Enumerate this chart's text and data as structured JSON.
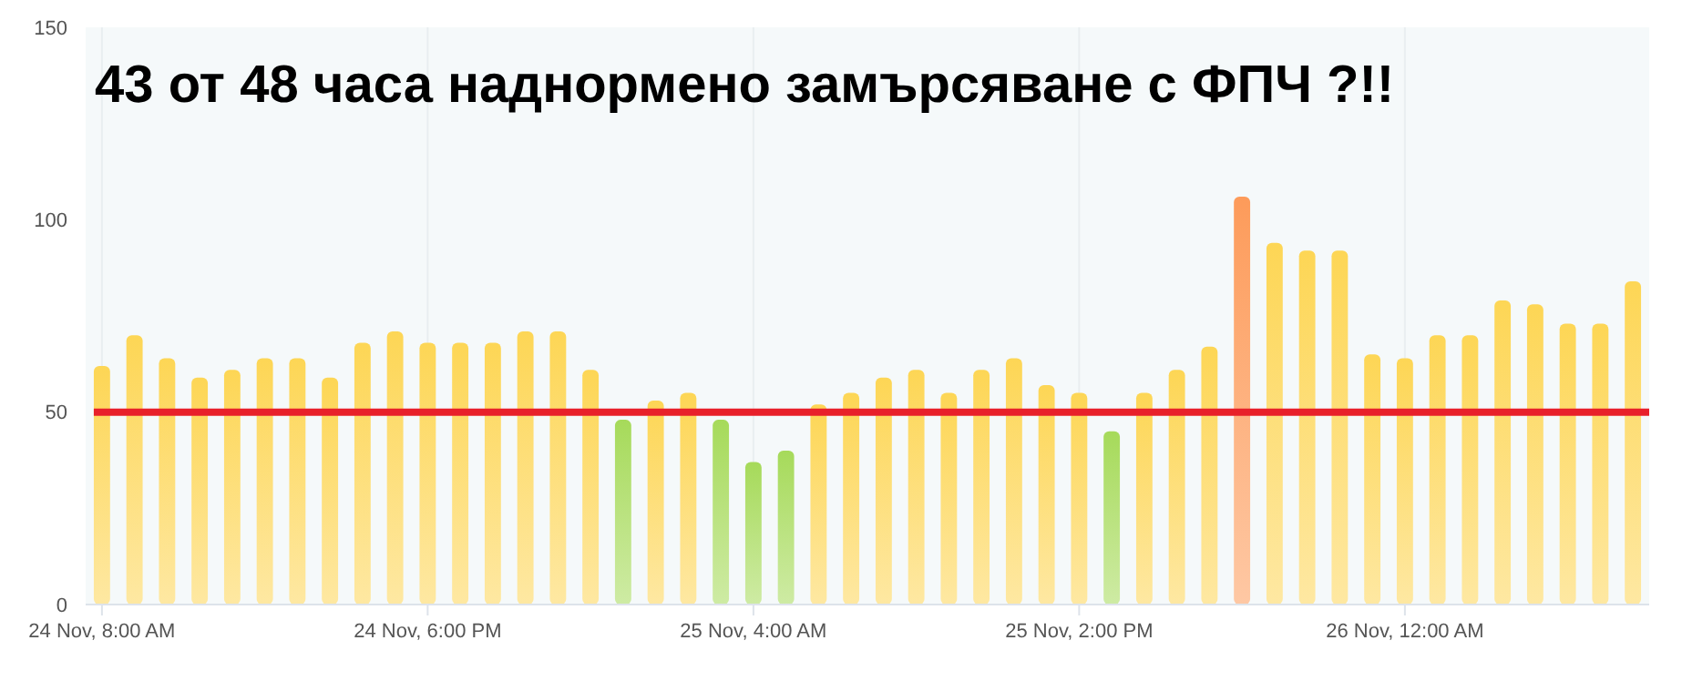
{
  "chart_data": {
    "type": "bar",
    "title": "43 от 48 часа наднормено замърсяване с ФПЧ ?!!",
    "categories": [
      "24 Nov, 8:00 AM",
      null,
      null,
      null,
      null,
      null,
      null,
      null,
      null,
      null,
      "24 Nov, 6:00 PM",
      null,
      null,
      null,
      null,
      null,
      null,
      null,
      null,
      null,
      "25 Nov, 4:00 AM",
      null,
      null,
      null,
      null,
      null,
      null,
      null,
      null,
      null,
      "25 Nov, 2:00 PM",
      null,
      null,
      null,
      null,
      null,
      null,
      null,
      null,
      null,
      "26 Nov, 12:00 AM",
      null,
      null,
      null,
      null,
      null,
      null,
      null
    ],
    "values": [
      62,
      70,
      64,
      59,
      61,
      64,
      64,
      59,
      68,
      71,
      68,
      68,
      68,
      71,
      71,
      61,
      48,
      53,
      55,
      48,
      37,
      40,
      52,
      55,
      59,
      61,
      55,
      61,
      64,
      57,
      55,
      45,
      55,
      61,
      67,
      106,
      94,
      92,
      92,
      65,
      64,
      70,
      70,
      79,
      78,
      73,
      73,
      84
    ],
    "colors": [
      "#fdd655",
      "#fdd655",
      "#fdd655",
      "#fdd655",
      "#fdd655",
      "#fdd655",
      "#fdd655",
      "#fdd655",
      "#fdd655",
      "#fdd655",
      "#fdd655",
      "#fdd655",
      "#fdd655",
      "#fdd655",
      "#fdd655",
      "#fdd655",
      "#a6da5a",
      "#fdd655",
      "#fdd655",
      "#a6da5a",
      "#a6da5a",
      "#a6da5a",
      "#fdd655",
      "#fdd655",
      "#fdd655",
      "#fdd655",
      "#fdd655",
      "#fdd655",
      "#fdd655",
      "#fdd655",
      "#fdd655",
      "#a6da5a",
      "#fdd655",
      "#fdd655",
      "#fdd655",
      "#fd9b5a",
      "#fdd655",
      "#fdd655",
      "#fdd655",
      "#fdd655",
      "#fdd655",
      "#fdd655",
      "#fdd655",
      "#fdd655",
      "#fdd655",
      "#fdd655",
      "#fdd655",
      "#fdd655"
    ],
    "ylim": [
      0,
      150
    ],
    "yticks": [
      0,
      50,
      100,
      150
    ],
    "grid": "x",
    "ref_lines": [
      {
        "axis": "y",
        "value": 50,
        "color": "#e8202a"
      }
    ]
  }
}
